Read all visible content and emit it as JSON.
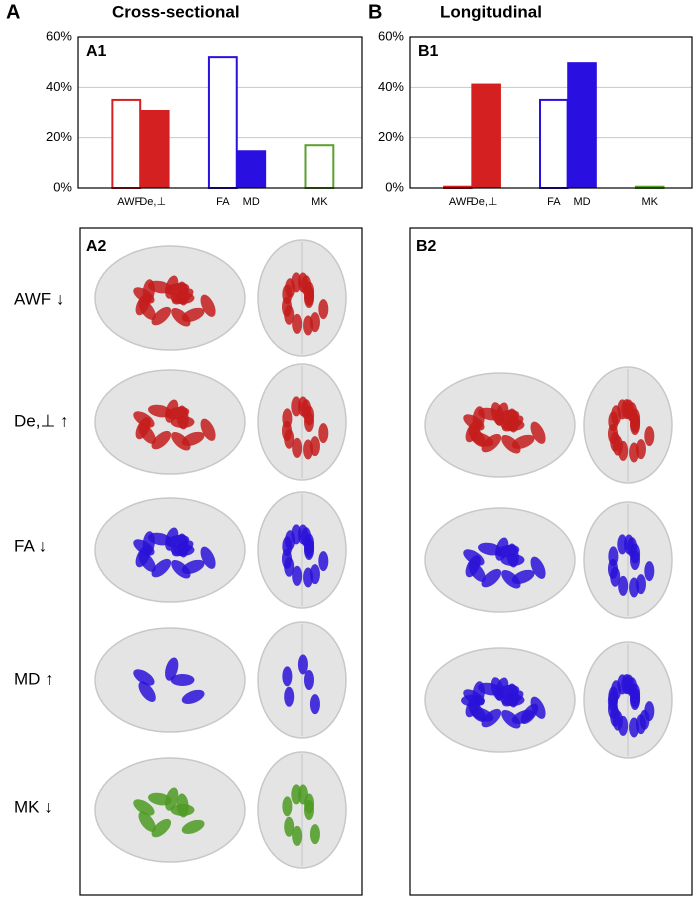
{
  "figure": {
    "left_letter": "A",
    "left_heading": "Cross-sectional",
    "right_letter": "B",
    "right_heading": "Longitudinal",
    "panel_a2": "A2",
    "panel_b2": "B2",
    "row_labels": [
      "AWF ↓",
      "De,⊥ ↑",
      "FA ↓",
      "MD ↑",
      "MK ↓"
    ]
  },
  "chart_data": [
    {
      "type": "bar",
      "title": "A1",
      "categories": [
        "AWF",
        "De,⊥",
        "FA",
        "MD",
        "MK"
      ],
      "values": [
        35,
        31,
        52,
        15,
        17
      ],
      "colors": [
        "#d42020",
        "#d42020",
        "#2a10e0",
        "#2a10e0",
        "#5aa02c"
      ],
      "filled": [
        false,
        true,
        false,
        true,
        false
      ],
      "ylim": [
        0,
        60
      ],
      "yticks": [
        {
          "value": 0,
          "label": "0%"
        },
        {
          "value": 20,
          "label": "20%"
        },
        {
          "value": 40,
          "label": "40%"
        },
        {
          "value": 60,
          "label": "60%"
        }
      ],
      "grid": true
    },
    {
      "type": "bar",
      "title": "B1",
      "categories": [
        "AWF",
        "De,⊥",
        "FA",
        "MD",
        "MK"
      ],
      "values": [
        0.5,
        41.5,
        35,
        50,
        0.5
      ],
      "colors": [
        "#d42020",
        "#d42020",
        "#2a10e0",
        "#2a10e0",
        "#5aa02c"
      ],
      "filled": [
        false,
        true,
        false,
        true,
        false
      ],
      "ylim": [
        0,
        60
      ],
      "yticks": [
        {
          "value": 0,
          "label": "0%"
        },
        {
          "value": 20,
          "label": "20%"
        },
        {
          "value": 40,
          "label": "40%"
        },
        {
          "value": 60,
          "label": "60%"
        }
      ],
      "grid": true
    }
  ]
}
